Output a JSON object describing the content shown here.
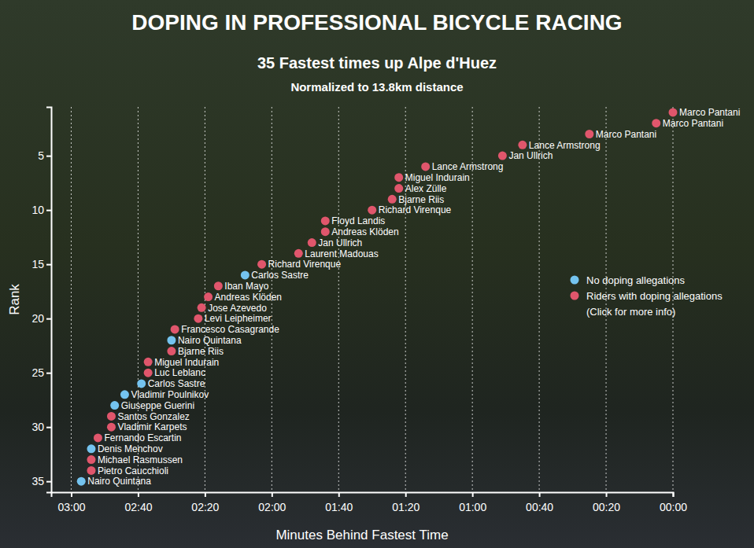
{
  "chart_data": {
    "type": "scatter",
    "title": "DOPING IN PROFESSIONAL BICYCLE RACING",
    "subtitle": "35 Fastest times up Alpe d'Huez",
    "subtitle_2": "Normalized to 13.8km distance",
    "x_label": "Minutes Behind Fastest Time",
    "y_label": "Rank",
    "annotations": [
      "(Click for more info)"
    ],
    "xlim": [
      186,
      0
    ],
    "xticks": [
      {
        "value": 180,
        "label": "03:00"
      },
      {
        "value": 160,
        "label": "02:40"
      },
      {
        "value": 140,
        "label": "02:20"
      },
      {
        "value": 120,
        "label": "02:00"
      },
      {
        "value": 100,
        "label": "01:40"
      },
      {
        "value": 80,
        "label": "01:20"
      },
      {
        "value": 60,
        "label": "01:00"
      },
      {
        "value": 40,
        "label": "00:40"
      },
      {
        "value": 20,
        "label": "00:20"
      },
      {
        "value": 0,
        "label": "00:00"
      }
    ],
    "ylim": [
      36,
      0.5
    ],
    "yticks": [
      5,
      10,
      15,
      20,
      25,
      30,
      35
    ],
    "grid": "x",
    "legend": "right",
    "marker": "circle",
    "series": [
      {
        "name": "No doping allegations",
        "color": "#74c3ef",
        "x": [
          128,
          150,
          159,
          164,
          167,
          174,
          177
        ],
        "values": [
          16,
          22,
          26,
          27,
          28,
          32,
          35
        ],
        "labels": [
          "Carlos Sastre",
          "Nairo Quintana",
          "Carlos Sastre",
          "Vladimir Poulnikov",
          "Giuseppe Guerini",
          "Denis Menchov",
          "Nairo Quintana"
        ]
      },
      {
        "name": "Riders with doping allegations",
        "color": "#e0566c",
        "x": [
          0,
          5,
          25,
          45,
          51,
          74,
          82,
          82,
          84,
          90,
          104,
          104,
          108,
          112,
          123,
          136,
          139,
          141,
          142,
          149,
          150,
          157,
          157,
          168,
          168,
          172,
          174,
          174
        ],
        "values": [
          1,
          2,
          3,
          4,
          5,
          6,
          7,
          8,
          9,
          10,
          11,
          12,
          13,
          14,
          15,
          17,
          18,
          19,
          20,
          21,
          23,
          24,
          25,
          29,
          30,
          31,
          33,
          34
        ],
        "labels": [
          "Marco Pantani",
          "Marco Pantani",
          "Marco Pantani",
          "Lance Armstrong",
          "Jan Ullrich",
          "Lance Armstrong",
          "Miguel Indurain",
          "Alex Zülle",
          "Bjarne Riis",
          "Richard Virenque",
          "Floyd Landis",
          "Andreas Klöden",
          "Jan Ullrich",
          "Laurent Madouas",
          "Richard Virenque",
          "Iban Mayo",
          "Andreas Klöden",
          "Jose Azevedo",
          "Levi Leipheimer",
          "Francesco Casagrande",
          "Bjarne Riis",
          "Miguel Indurain",
          "Luc Leblanc",
          "Santos Gonzalez",
          "Vladimir Karpets",
          "Fernando Escartin",
          "Michael Rasmussen",
          "Pietro Caucchioli"
        ]
      }
    ]
  }
}
